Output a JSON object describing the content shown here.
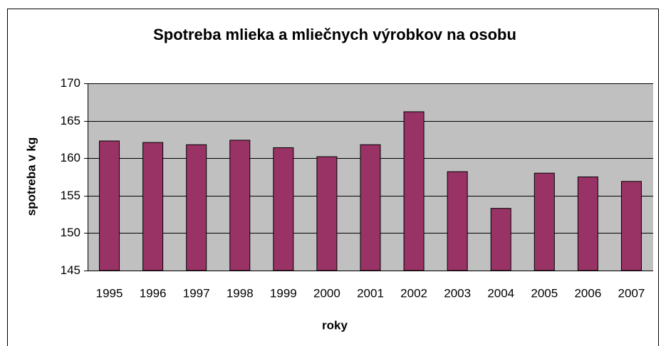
{
  "chart_data": {
    "type": "bar",
    "title": "Spotreba mlieka a mliečnych výrobkov na osobu",
    "x_label": "roky",
    "y_label": "spotreba v kg",
    "categories": [
      "1995",
      "1996",
      "1997",
      "1998",
      "1999",
      "2000",
      "2001",
      "2002",
      "2003",
      "2004",
      "2005",
      "2006",
      "2007"
    ],
    "values": [
      162.3,
      162.1,
      161.8,
      162.4,
      161.4,
      160.2,
      161.8,
      166.2,
      158.2,
      153.3,
      158.0,
      157.5,
      156.9
    ],
    "color": "#993366",
    "ylim": [
      145,
      170
    ],
    "yticks": [
      145,
      150,
      155,
      160,
      165,
      170
    ],
    "grid": true
  }
}
